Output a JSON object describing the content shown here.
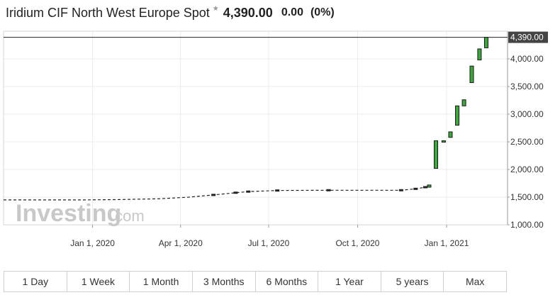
{
  "header": {
    "title": "Iridium CIF North West Europe Spot",
    "price": "4,390.00",
    "change": "0.00",
    "change_pct": "(0%)"
  },
  "watermark": {
    "brand_main": "Investing",
    "brand_suffix": ".com"
  },
  "range_buttons": [
    "1 Day",
    "1 Week",
    "1 Month",
    "3 Months",
    "6 Months",
    "1 Year",
    "5 years",
    "Max"
  ],
  "chart_data": {
    "type": "candlestick",
    "x_axis": {
      "start": "2019-10-01",
      "end": "2021-03-05",
      "ticks": [
        {
          "date": "2020-01-01",
          "label": "Jan 1, 2020"
        },
        {
          "date": "2020-04-01",
          "label": "Apr 1, 2020"
        },
        {
          "date": "2020-07-01",
          "label": "Jul 1, 2020"
        },
        {
          "date": "2020-10-01",
          "label": "Oct 1, 2020"
        },
        {
          "date": "2021-01-01",
          "label": "Jan 1, 2021"
        }
      ]
    },
    "y_axis": {
      "min": 1000,
      "max": 4500,
      "ticks": [
        {
          "value": 1000,
          "label": "1,000.00"
        },
        {
          "value": 1500,
          "label": "1,500.00"
        },
        {
          "value": 2000,
          "label": "2,000.00"
        },
        {
          "value": 2500,
          "label": "2,500.00"
        },
        {
          "value": 3000,
          "label": "3,000.00"
        },
        {
          "value": 3500,
          "label": "3,500.00"
        },
        {
          "value": 4000,
          "label": "4,000.00"
        }
      ]
    },
    "last_price": {
      "value": 4390,
      "label": "4,390.00"
    },
    "flat_series": [
      {
        "date": "2019-10-01",
        "value": 1450
      },
      {
        "date": "2019-12-20",
        "value": 1450
      },
      {
        "date": "2020-01-25",
        "value": 1455
      },
      {
        "date": "2020-03-10",
        "value": 1470
      },
      {
        "date": "2020-04-10",
        "value": 1500
      },
      {
        "date": "2020-05-05",
        "value": 1540
      },
      {
        "date": "2020-05-28",
        "value": 1580
      },
      {
        "date": "2020-06-10",
        "value": 1600
      },
      {
        "date": "2020-07-10",
        "value": 1620
      },
      {
        "date": "2020-09-01",
        "value": 1625
      },
      {
        "date": "2020-11-15",
        "value": 1625
      },
      {
        "date": "2020-11-30",
        "value": 1650
      },
      {
        "date": "2020-12-10",
        "value": 1680
      }
    ],
    "candles": [
      {
        "date": "2020-12-14",
        "open": 1680,
        "close": 1720
      },
      {
        "date": "2020-12-21",
        "open": 2020,
        "close": 2520
      },
      {
        "date": "2020-12-29",
        "open": 2500,
        "close": 2520
      },
      {
        "date": "2021-01-05",
        "open": 2580,
        "close": 2680
      },
      {
        "date": "2021-01-12",
        "open": 2800,
        "close": 3150
      },
      {
        "date": "2021-01-19",
        "open": 3150,
        "close": 3260
      },
      {
        "date": "2021-01-27",
        "open": 3570,
        "close": 3870
      },
      {
        "date": "2021-02-04",
        "open": 3980,
        "close": 4180
      },
      {
        "date": "2021-02-11",
        "open": 4200,
        "close": 4390
      }
    ]
  }
}
